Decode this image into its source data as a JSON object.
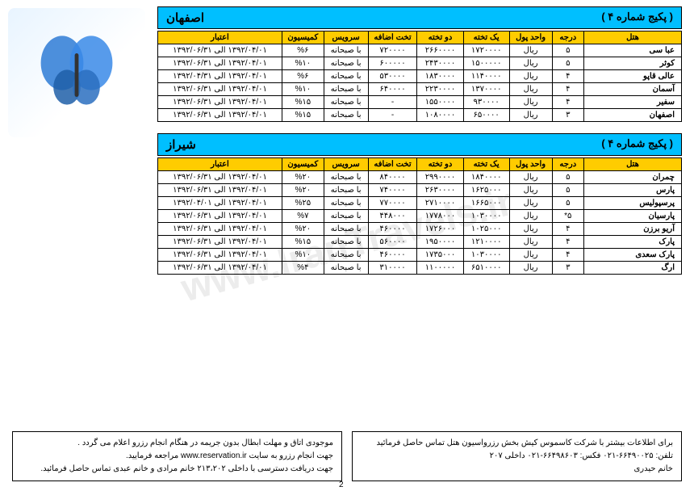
{
  "watermark": "www.IranTravels.ir",
  "page_number": "2",
  "columns": {
    "hotel": "هتل",
    "grade": "درجه",
    "unit": "واحد پول",
    "single": "یک تخته",
    "double": "دو تخته",
    "extra": "تخت اضافه",
    "service": "سرویس",
    "commission": "کمیسیون",
    "credit": "اعتبار"
  },
  "sections": [
    {
      "city": "اصفهان",
      "package": "( پکیج شماره ۴ )",
      "rows": [
        {
          "hotel": "عبا سی",
          "grade": "۵",
          "unit": "ریال",
          "single": "۱۷۲۰۰۰۰",
          "double": "۲۶۶۰۰۰۰",
          "extra": "۷۲۰۰۰۰",
          "service": "با صبحانه",
          "commission": "%۶",
          "credit": "۱۳۹۲/۰۴/۰۱ الی ۱۳۹۲/۰۶/۳۱"
        },
        {
          "hotel": "کوثر",
          "grade": "۵",
          "unit": "ریال",
          "single": "۱۵۰۰۰۰۰",
          "double": "۲۴۳۰۰۰۰",
          "extra": "۶۰۰۰۰۰",
          "service": "با صبحانه",
          "commission": "%۱۰",
          "credit": "۱۳۹۲/۰۴/۰۱ الی ۱۳۹۲/۰۶/۳۱"
        },
        {
          "hotel": "عالی قاپو",
          "grade": "۴",
          "unit": "ریال",
          "single": "۱۱۴۰۰۰۰",
          "double": "۱۸۳۰۰۰۰",
          "extra": "۵۳۰۰۰۰",
          "service": "با صبحانه",
          "commission": "%۶",
          "credit": "۱۳۹۲/۰۴/۰۱ الی ۱۳۹۲/۰۴/۳۱"
        },
        {
          "hotel": "آسمان",
          "grade": "۴",
          "unit": "ریال",
          "single": "۱۳۷۰۰۰۰",
          "double": "۲۲۳۰۰۰۰",
          "extra": "۶۴۰۰۰۰",
          "service": "با صبحانه",
          "commission": "%۱۰",
          "credit": "۱۳۹۲/۰۴/۰۱ الی ۱۳۹۲/۰۶/۳۱"
        },
        {
          "hotel": "سفیر",
          "grade": "۴",
          "unit": "ریال",
          "single": "۹۳۰۰۰۰",
          "double": "۱۵۵۰۰۰۰",
          "extra": "-",
          "service": "با صبحانه",
          "commission": "%۱۵",
          "credit": "۱۳۹۲/۰۴/۰۱ الی ۱۳۹۲/۰۶/۳۱"
        },
        {
          "hotel": "اصفهان",
          "grade": "۳",
          "unit": "ریال",
          "single": "۶۵۰۰۰۰",
          "double": "۱۰۸۰۰۰۰",
          "extra": "-",
          "service": "با صبحانه",
          "commission": "%۱۵",
          "credit": "۱۳۹۲/۰۴/۰۱ الی ۱۳۹۲/۰۶/۳۱"
        }
      ]
    },
    {
      "city": "شیراز",
      "package": "( پکیج شماره ۴ )",
      "rows": [
        {
          "hotel": "چمران",
          "grade": "۵",
          "unit": "ریال",
          "single": "۱۸۴۰۰۰۰",
          "double": "۲۹۹۰۰۰۰",
          "extra": "۸۴۰۰۰۰",
          "service": "با صبحانه",
          "commission": "%۲۰",
          "credit": "۱۳۹۲/۰۴/۰۱ الی ۱۳۹۲/۰۶/۳۱"
        },
        {
          "hotel": "پارس",
          "grade": "۵",
          "unit": "ریال",
          "single": "۱۶۲۵۰۰۰",
          "double": "۲۶۳۰۰۰۰",
          "extra": "۷۴۰۰۰۰",
          "service": "با صبحانه",
          "commission": "%۲۰",
          "credit": "۱۳۹۲/۰۴/۰۱ الی ۱۳۹۲/۰۶/۳۱"
        },
        {
          "hotel": "پرسپولیس",
          "grade": "۵",
          "unit": "ریال",
          "single": "۱۶۶۵۰۰۰",
          "double": "۲۷۱۰۰۰۰",
          "extra": "۷۷۰۰۰۰",
          "service": "با صبحانه",
          "commission": "%۲۵",
          "credit": "۱۳۹۲/۰۴/۰۱ الی ۱۳۹۲/۰۴/۰۱"
        },
        {
          "hotel": "پارسیان",
          "grade": "۵*",
          "unit": "ریال",
          "single": "۱۰۳۰۰۰۰",
          "double": "۱۷۷۸۰۰۰",
          "extra": "۴۴۸۰۰۰",
          "service": "با صبحانه",
          "commission": "%۷",
          "credit": "۱۳۹۲/۰۴/۰۱ الی ۱۳۹۲/۰۶/۳۱"
        },
        {
          "hotel": "آریو برزن",
          "grade": "۴",
          "unit": "ریال",
          "single": "۱۰۲۵۰۰۰",
          "double": "۱۷۲۶۰۰۰",
          "extra": "۴۶۰۰۰۰",
          "service": "با صبحانه",
          "commission": "%۲۰",
          "credit": "۱۳۹۲/۰۴/۰۱ الی ۱۳۹۲/۰۶/۳۱"
        },
        {
          "hotel": "پارک",
          "grade": "۴",
          "unit": "ریال",
          "single": "۱۲۱۰۰۰۰",
          "double": "۱۹۵۰۰۰۰",
          "extra": "۵۶۰۰۰۰",
          "service": "با صبحانه",
          "commission": "%۱۵",
          "credit": "۱۳۹۲/۰۴/۰۱ الی ۱۳۹۲/۰۶/۳۱"
        },
        {
          "hotel": "پارک سعدی",
          "grade": "۴",
          "unit": "ریال",
          "single": "۱۰۳۰۰۰۰",
          "double": "۱۷۳۵۰۰۰",
          "extra": "۴۶۰۰۰۰",
          "service": "با صبحانه",
          "commission": "%۱۰",
          "credit": "۱۳۹۲/۰۴/۰۱ الی ۱۳۹۲/۰۶/۳۱"
        },
        {
          "hotel": "ارگ",
          "grade": "۳",
          "unit": "ریال",
          "single": "۶۵۱۰۰۰۰",
          "double": "۱۱۰۰۰۰۰",
          "extra": "۳۱۰۰۰۰",
          "service": "با صبحانه",
          "commission": "%۴",
          "credit": "۱۳۹۲/۰۴/۰۱ الی ۱۳۹۲/۰۶/۳۱"
        }
      ]
    }
  ],
  "footer_right": {
    "line1": "برای اطلاعات بیشتر با شرکت کاسموس کیش بخش رزرواسیون هتل تماس حاصل فرمائید",
    "line2": "تلفن: ۶۶۴۹۰۰۲۵-۰۲۱   فکس: ۶۶۴۹۸۶۰۳-۰۲۱   داخلی ۲۰۷",
    "line3": "خانم حیدری"
  },
  "footer_left": {
    "line1": "موجودی اتاق و مهلت ابطال بدون جریمه در هنگام انجام رزرو اعلام می گردد .",
    "line2": "جهت انجام رزرو به سایت www.reservation.ir مراجعه فرمایید.",
    "line3": "جهت دریافت دسترسی با داخلی ۲۱۳،۲۰۲ خانم مرادی و خانم عبدی تماس حاصل فرمائید."
  },
  "colors": {
    "header_bg": "#00bfff",
    "th_bg": "#ffcc00",
    "border": "#000000"
  }
}
